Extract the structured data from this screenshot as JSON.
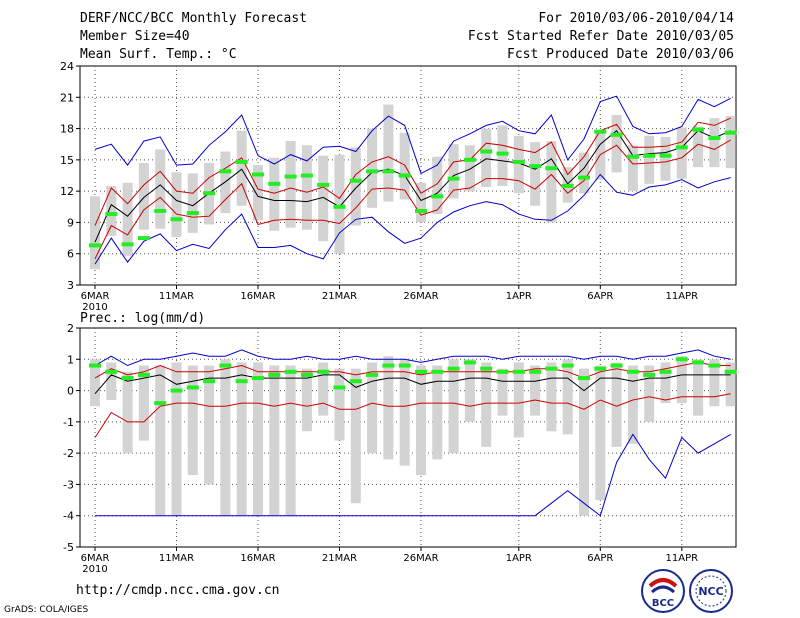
{
  "header": {
    "title": "DERF/NCC/BCC Monthly Forecast",
    "member_size": "Member Size=40",
    "variable": "Mean Surf. Temp.: °C",
    "forecast_range": "For 2010/03/06-2010/04/14",
    "fcst_started": "Fcst Started Refer Date 2010/03/05",
    "fcst_produced": "Fcst Produced Date 2010/03/06"
  },
  "footer": {
    "url": "http://cmdp.ncc.cma.gov.cn",
    "grads": "GrADS: COLA/IGES",
    "bcc_logo_text": "BCC",
    "ncc_logo_text": "NCC"
  },
  "colors": {
    "mean": "#000000",
    "std": "#cc0000",
    "envelope": "#0000cc",
    "box": "#d3d3d3",
    "observed": "#22ee22",
    "grid": "#555555"
  },
  "chart_data": [
    {
      "type": "line",
      "title": "Mean Surf. Temp.: °C",
      "ylim": [
        3,
        24
      ],
      "yticks": [
        3,
        6,
        9,
        12,
        15,
        18,
        21,
        24
      ],
      "x_tick_labels": [
        {
          "day": 0,
          "label": "6MAR"
        },
        {
          "day": 5,
          "label": "11MAR"
        },
        {
          "day": 10,
          "label": "16MAR"
        },
        {
          "day": 15,
          "label": "21MAR"
        },
        {
          "day": 20,
          "label": "26MAR"
        },
        {
          "day": 26,
          "label": "1APR"
        },
        {
          "day": 31,
          "label": "6APR"
        },
        {
          "day": 36,
          "label": "11APR"
        }
      ],
      "year_label": "2010",
      "series": [
        {
          "name": "max",
          "values": [
            16.0,
            16.5,
            14.5,
            16.8,
            17.2,
            14.5,
            14.6,
            16.4,
            17.7,
            19.3,
            15.4,
            14.6,
            15.5,
            14.9,
            16.2,
            16.3,
            15.8,
            17.8,
            19.2,
            18.3,
            13.7,
            14.5,
            16.8,
            17.5,
            18.3,
            18.7,
            17.8,
            17.5,
            19.3,
            15.0,
            17.0,
            20.6,
            21.1,
            18.2,
            17.5,
            17.6,
            18.2,
            20.8,
            20.1,
            20.9
          ]
        },
        {
          "name": "std_upper",
          "values": [
            8.7,
            12.3,
            10.8,
            12.6,
            13.9,
            12.0,
            11.8,
            13.3,
            14.2,
            15.2,
            12.2,
            11.8,
            12.3,
            11.9,
            12.4,
            11.3,
            13.6,
            14.8,
            15.3,
            14.5,
            11.8,
            12.7,
            14.8,
            15.0,
            16.6,
            16.4,
            16.0,
            15.7,
            16.7,
            13.6,
            15.3,
            17.8,
            18.4,
            16.2,
            16.2,
            16.3,
            16.7,
            18.6,
            18.3,
            19.0
          ]
        },
        {
          "name": "mean",
          "values": [
            7.1,
            10.7,
            9.6,
            11.4,
            12.6,
            11.1,
            10.6,
            11.8,
            12.9,
            14.1,
            11.5,
            11.1,
            11.1,
            11.0,
            11.4,
            10.5,
            12.3,
            13.8,
            14.1,
            13.5,
            11.1,
            11.8,
            13.5,
            14.1,
            15.1,
            14.9,
            14.7,
            14.1,
            15.1,
            12.7,
            14.2,
            16.5,
            17.8,
            15.4,
            15.6,
            15.7,
            16.2,
            17.8,
            17.1,
            17.8
          ]
        },
        {
          "name": "std_lower",
          "values": [
            5.5,
            8.7,
            7.8,
            10.2,
            11.4,
            9.8,
            9.5,
            9.6,
            11.2,
            12.7,
            8.8,
            9.2,
            9.3,
            9.2,
            9.2,
            8.9,
            10.4,
            12.2,
            12.3,
            12.1,
            9.7,
            10.2,
            12.1,
            12.3,
            13.2,
            13.2,
            13.0,
            12.2,
            13.6,
            11.8,
            13.0,
            15.5,
            16.4,
            14.6,
            14.7,
            14.8,
            15.2,
            16.5,
            16.0,
            16.9
          ]
        },
        {
          "name": "min",
          "values": [
            5.0,
            7.5,
            5.2,
            7.2,
            7.9,
            6.3,
            6.9,
            6.5,
            8.3,
            9.8,
            6.6,
            6.6,
            6.8,
            6.0,
            5.5,
            8.0,
            9.3,
            9.5,
            8.1,
            7.0,
            7.5,
            9.0,
            10.0,
            10.6,
            11.0,
            10.7,
            9.8,
            9.3,
            9.2,
            10.1,
            11.6,
            13.6,
            11.9,
            11.6,
            12.4,
            12.6,
            13.1,
            12.3,
            12.9,
            13.3
          ]
        },
        {
          "name": "obs",
          "values": [
            6.8,
            9.8,
            6.9,
            7.5,
            10.1,
            9.3,
            9.9,
            11.8,
            13.9,
            14.8,
            13.6,
            12.7,
            13.4,
            13.5,
            12.6,
            10.5,
            13.0,
            13.9,
            13.9,
            13.5,
            10.1,
            11.5,
            13.2,
            15.0,
            15.8,
            15.6,
            14.8,
            14.4,
            14.2,
            12.5,
            13.3,
            17.7,
            17.4,
            15.3,
            15.4,
            15.4,
            16.2,
            17.9,
            17.1,
            17.6
          ]
        }
      ],
      "boxes": {
        "low": [
          4.5,
          7.7,
          5.8,
          8.3,
          8.4,
          7.6,
          8.0,
          8.8,
          9.9,
          10.6,
          9.2,
          8.2,
          8.5,
          8.3,
          7.2,
          6.0,
          8.7,
          10.4,
          11.0,
          11.2,
          9.0,
          9.8,
          11.3,
          12.0,
          12.4,
          12.5,
          11.8,
          10.6,
          9.0,
          10.9,
          11.8,
          13.1,
          13.8,
          12.0,
          12.7,
          13.0,
          13.2,
          14.3,
          14.3,
          14.2
        ],
        "high": [
          11.5,
          12.5,
          12.8,
          14.7,
          16.0,
          13.8,
          13.7,
          14.7,
          15.8,
          17.8,
          14.5,
          15.2,
          16.8,
          16.4,
          15.4,
          15.5,
          16.2,
          18.0,
          20.3,
          17.6,
          12.8,
          15.3,
          16.5,
          16.4,
          18.0,
          18.3,
          17.3,
          16.7,
          16.8,
          14.3,
          15.7,
          17.6,
          19.3,
          16.4,
          17.3,
          17.2,
          18.1,
          18.2,
          19.0,
          19.2
        ]
      }
    },
    {
      "type": "line",
      "title": "Prec.: log(mm/d)",
      "ylim": [
        -5,
        2
      ],
      "yticks": [
        -5,
        -4,
        -3,
        -2,
        -1,
        0,
        1,
        2
      ],
      "x_tick_labels": [
        {
          "day": 0,
          "label": "6MAR"
        },
        {
          "day": 5,
          "label": "11MAR"
        },
        {
          "day": 10,
          "label": "16MAR"
        },
        {
          "day": 15,
          "label": "21MAR"
        },
        {
          "day": 20,
          "label": "26MAR"
        },
        {
          "day": 26,
          "label": "1APR"
        },
        {
          "day": 31,
          "label": "6APR"
        },
        {
          "day": 36,
          "label": "11APR"
        }
      ],
      "year_label": "2010",
      "series": [
        {
          "name": "max",
          "values": [
            0.8,
            1.1,
            0.8,
            1.0,
            1.0,
            1.1,
            1.2,
            1.1,
            1.1,
            1.3,
            1.1,
            1.0,
            1.0,
            1.1,
            1.0,
            1.0,
            1.1,
            1.0,
            1.0,
            1.0,
            0.9,
            1.0,
            1.1,
            1.1,
            1.1,
            1.0,
            1.1,
            1.1,
            1.1,
            1.1,
            1.0,
            1.1,
            1.1,
            1.0,
            1.1,
            1.1,
            1.2,
            1.3,
            1.1,
            1.0
          ]
        },
        {
          "name": "std_upper",
          "values": [
            0.4,
            0.7,
            0.5,
            0.6,
            0.8,
            0.6,
            0.6,
            0.6,
            0.7,
            0.8,
            0.6,
            0.6,
            0.6,
            0.6,
            0.6,
            0.6,
            0.5,
            0.6,
            0.6,
            0.6,
            0.5,
            0.6,
            0.6,
            0.6,
            0.6,
            0.6,
            0.6,
            0.7,
            0.7,
            0.6,
            0.4,
            0.6,
            0.7,
            0.6,
            0.6,
            0.7,
            0.8,
            0.9,
            0.8,
            0.8
          ]
        },
        {
          "name": "mean",
          "values": [
            -0.1,
            0.5,
            0.3,
            0.4,
            0.5,
            0.2,
            0.3,
            0.4,
            0.4,
            0.5,
            0.4,
            0.4,
            0.4,
            0.4,
            0.5,
            0.5,
            0.1,
            0.3,
            0.4,
            0.4,
            0.2,
            0.3,
            0.3,
            0.4,
            0.4,
            0.3,
            0.3,
            0.3,
            0.4,
            0.4,
            0.0,
            0.4,
            0.4,
            0.3,
            0.4,
            0.4,
            0.5,
            0.5,
            0.5,
            0.5
          ]
        },
        {
          "name": "std_lower",
          "values": [
            -1.5,
            -0.7,
            -1.0,
            -1.0,
            -0.5,
            -0.4,
            -0.4,
            -0.5,
            -0.5,
            -0.4,
            -0.4,
            -0.5,
            -0.4,
            -0.5,
            -0.4,
            -0.6,
            -0.6,
            -0.4,
            -0.5,
            -0.5,
            -0.4,
            -0.4,
            -0.4,
            -0.5,
            -0.4,
            -0.4,
            -0.4,
            -0.3,
            -0.4,
            -0.4,
            -0.6,
            -0.3,
            -0.5,
            -0.3,
            -0.2,
            -0.3,
            -0.2,
            -0.2,
            -0.2,
            -0.1
          ]
        },
        {
          "name": "min",
          "values": [
            -4,
            -4,
            -4,
            -4,
            -4,
            -4,
            -4,
            -4,
            -4,
            -4,
            -4,
            -4,
            -4,
            -4,
            -4,
            -4,
            -4,
            -4,
            -4,
            -4,
            -4,
            -4,
            -4,
            -4,
            -4,
            -4,
            -4,
            -4,
            -3.6,
            -3.2,
            -3.6,
            -4.0,
            -2.3,
            -1.4,
            -2.2,
            -2.8,
            -1.5,
            -2.0,
            -1.7,
            -1.4
          ]
        },
        {
          "name": "obs",
          "values": [
            0.8,
            0.6,
            0.4,
            0.5,
            -0.4,
            0.0,
            0.1,
            0.3,
            0.8,
            0.3,
            0.4,
            0.5,
            0.6,
            0.5,
            0.6,
            0.1,
            0.3,
            0.5,
            0.8,
            0.8,
            0.6,
            0.6,
            0.7,
            0.9,
            0.7,
            0.6,
            0.6,
            0.6,
            0.7,
            0.8,
            0.4,
            0.7,
            0.8,
            0.6,
            0.5,
            0.6,
            1.0,
            0.9,
            0.8,
            0.6
          ]
        }
      ],
      "boxes": {
        "low": [
          -0.5,
          -0.3,
          -2.0,
          -1.6,
          -4.0,
          -4.0,
          -2.7,
          -3.0,
          -4.0,
          -4.0,
          -4.0,
          -4.0,
          -4.0,
          -1.3,
          -0.8,
          -1.6,
          -3.6,
          -2.0,
          -2.2,
          -2.4,
          -2.7,
          -2.2,
          -2.0,
          -1.0,
          -1.8,
          -0.8,
          -1.5,
          -0.8,
          -1.3,
          -1.4,
          -4.0,
          -3.5,
          -1.8,
          -1.7,
          -1.0,
          -0.4,
          -0.4,
          -0.8,
          -0.5,
          -0.5
        ],
        "high": [
          1.0,
          0.9,
          0.6,
          0.8,
          0.8,
          0.9,
          0.8,
          0.8,
          1.0,
          0.9,
          0.9,
          0.8,
          0.8,
          0.7,
          0.9,
          0.7,
          0.7,
          0.9,
          1.1,
          1.0,
          0.8,
          0.8,
          1.0,
          1.0,
          0.9,
          0.7,
          0.9,
          0.8,
          0.9,
          1.0,
          0.7,
          0.8,
          0.9,
          0.8,
          0.8,
          0.9,
          1.1,
          1.0,
          1.0,
          0.9
        ]
      }
    }
  ]
}
